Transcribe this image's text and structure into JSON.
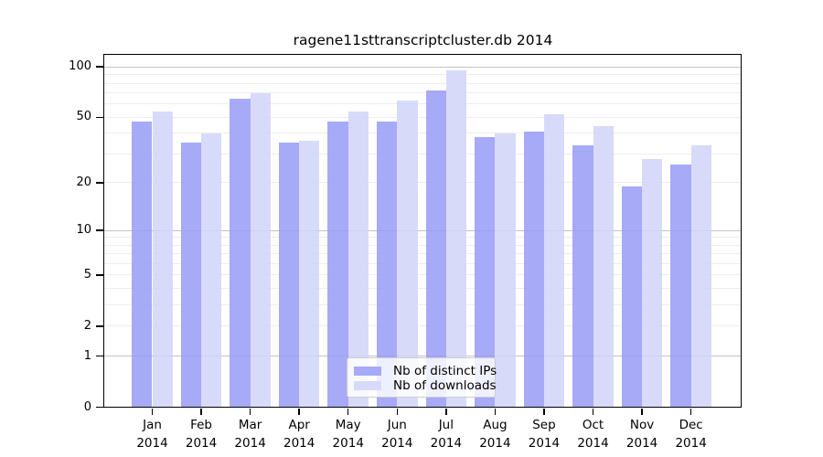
{
  "chart_data": {
    "type": "bar",
    "title": "ragene11sttranscriptcluster.db 2014",
    "scale": "log1p",
    "grid": "horizontal, decade lines emphasized, faint log minor lines",
    "legend_position": "bottom-center-inside",
    "year": "2014",
    "categories": [
      "Jan 2014",
      "Feb 2014",
      "Mar 2014",
      "Apr 2014",
      "May 2014",
      "Jun 2014",
      "Jul 2014",
      "Aug 2014",
      "Sep 2014",
      "Oct 2014",
      "Nov 2014",
      "Dec 2014"
    ],
    "x_tick_months": [
      "Jan",
      "Feb",
      "Mar",
      "Apr",
      "May",
      "Jun",
      "Jul",
      "Aug",
      "Sep",
      "Oct",
      "Nov",
      "Dec"
    ],
    "series": [
      {
        "name": "Nb of distinct IPs",
        "key": "distinct-ips",
        "color": "#a7aaf7",
        "values": [
          47,
          35,
          65,
          35,
          47,
          47,
          72,
          38,
          41,
          34,
          19,
          26
        ]
      },
      {
        "name": "Nb of downloads",
        "key": "downloads",
        "color": "#d8dafa",
        "values": [
          54,
          40,
          70,
          36,
          54,
          63,
          95,
          40,
          52,
          44,
          28,
          34
        ]
      }
    ],
    "yticks": [
      0,
      1,
      2,
      5,
      10,
      20,
      50,
      100
    ],
    "minor_grid_values": [
      2,
      3,
      4,
      5,
      6,
      7,
      8,
      9,
      20,
      30,
      40,
      50,
      60,
      70,
      80,
      90
    ],
    "decade_grid_values": [
      1,
      10,
      100
    ],
    "ylim": [
      0,
      118
    ]
  }
}
